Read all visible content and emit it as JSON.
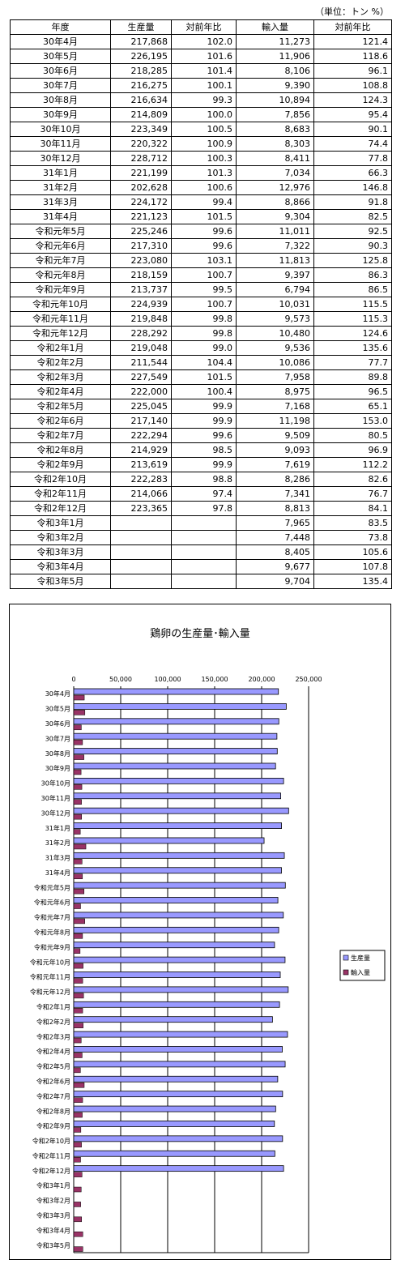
{
  "unit_note": "（単位：トン %）",
  "table": {
    "headers": [
      "年度",
      "生産量",
      "対前年比",
      "輸入量",
      "対前年比"
    ],
    "rows": [
      [
        "30年4月",
        "217,868",
        "102.0",
        "11,273",
        "121.4"
      ],
      [
        "30年5月",
        "226,195",
        "101.6",
        "11,906",
        "118.6"
      ],
      [
        "30年6月",
        "218,285",
        "101.4",
        "8,106",
        "96.1"
      ],
      [
        "30年7月",
        "216,275",
        "100.1",
        "9,390",
        "108.8"
      ],
      [
        "30年8月",
        "216,634",
        "99.3",
        "10,894",
        "124.3"
      ],
      [
        "30年9月",
        "214,809",
        "100.0",
        "7,856",
        "95.4"
      ],
      [
        "30年10月",
        "223,349",
        "100.5",
        "8,683",
        "90.1"
      ],
      [
        "30年11月",
        "220,322",
        "100.9",
        "8,303",
        "74.4"
      ],
      [
        "30年12月",
        "228,712",
        "100.3",
        "8,411",
        "77.8"
      ],
      [
        "31年1月",
        "221,199",
        "101.3",
        "7,034",
        "66.3"
      ],
      [
        "31年2月",
        "202,628",
        "100.6",
        "12,976",
        "146.8"
      ],
      [
        "31年3月",
        "224,172",
        "99.4",
        "8,866",
        "91.8"
      ],
      [
        "31年4月",
        "221,123",
        "101.5",
        "9,304",
        "82.5"
      ],
      [
        "令和元年5月",
        "225,246",
        "99.6",
        "11,011",
        "92.5"
      ],
      [
        "令和元年6月",
        "217,310",
        "99.6",
        "7,322",
        "90.3"
      ],
      [
        "令和元年7月",
        "223,080",
        "103.1",
        "11,813",
        "125.8"
      ],
      [
        "令和元年8月",
        "218,159",
        "100.7",
        "9,397",
        "86.3"
      ],
      [
        "令和元年9月",
        "213,737",
        "99.5",
        "6,794",
        "86.5"
      ],
      [
        "令和元年10月",
        "224,939",
        "100.7",
        "10,031",
        "115.5"
      ],
      [
        "令和元年11月",
        "219,848",
        "99.8",
        "9,573",
        "115.3"
      ],
      [
        "令和元年12月",
        "228,292",
        "99.8",
        "10,480",
        "124.6"
      ],
      [
        "令和2年1月",
        "219,048",
        "99.0",
        "9,536",
        "135.6"
      ],
      [
        "令和2年2月",
        "211,544",
        "104.4",
        "10,086",
        "77.7"
      ],
      [
        "令和2年3月",
        "227,549",
        "101.5",
        "7,958",
        "89.8"
      ],
      [
        "令和2年4月",
        "222,000",
        "100.4",
        "8,975",
        "96.5"
      ],
      [
        "令和2年5月",
        "225,045",
        "99.9",
        "7,168",
        "65.1"
      ],
      [
        "令和2年6月",
        "217,140",
        "99.9",
        "11,198",
        "153.0"
      ],
      [
        "令和2年7月",
        "222,294",
        "99.6",
        "9,509",
        "80.5"
      ],
      [
        "令和2年8月",
        "214,929",
        "98.5",
        "9,093",
        "96.9"
      ],
      [
        "令和2年9月",
        "213,619",
        "99.9",
        "7,619",
        "112.2"
      ],
      [
        "令和2年10月",
        "222,283",
        "98.8",
        "8,286",
        "82.6"
      ],
      [
        "令和2年11月",
        "214,066",
        "97.4",
        "7,341",
        "76.7"
      ],
      [
        "令和2年12月",
        "223,365",
        "97.8",
        "8,813",
        "84.1"
      ],
      [
        "令和3年1月",
        "",
        "",
        "7,965",
        "83.5"
      ],
      [
        "令和3年2月",
        "",
        "",
        "7,448",
        "73.8"
      ],
      [
        "令和3年3月",
        "",
        "",
        "8,405",
        "105.6"
      ],
      [
        "令和3年4月",
        "",
        "",
        "9,677",
        "107.8"
      ],
      [
        "令和3年5月",
        "",
        "",
        "9,704",
        "135.4"
      ]
    ]
  },
  "chart_data": {
    "type": "bar",
    "orientation": "horizontal",
    "title": "鶏卵の生産量･輸入量",
    "xlim": [
      0,
      250000
    ],
    "x_ticks": [
      "0",
      "50,000",
      "100,000",
      "150,000",
      "200,000",
      "250,000"
    ],
    "grid": true,
    "legend_position": "right",
    "categories": [
      "30年4月",
      "30年5月",
      "30年6月",
      "30年7月",
      "30年8月",
      "30年9月",
      "30年10月",
      "30年11月",
      "30年12月",
      "31年1月",
      "31年2月",
      "31年3月",
      "31年4月",
      "令和元年5月",
      "令和元年6月",
      "令和元年7月",
      "令和元年8月",
      "令和元年9月",
      "令和元年10月",
      "令和元年11月",
      "令和元年12月",
      "令和2年1月",
      "令和2年2月",
      "令和2年3月",
      "令和2年4月",
      "令和2年5月",
      "令和2年6月",
      "令和2年7月",
      "令和2年8月",
      "令和2年9月",
      "令和2年10月",
      "令和2年11月",
      "令和2年12月",
      "令和3年1月",
      "令和3年2月",
      "令和3年3月",
      "令和3年4月",
      "令和3年5月"
    ],
    "series": [
      {
        "name": "生産量",
        "color": "#9999ff",
        "values": [
          217868,
          226195,
          218285,
          216275,
          216634,
          214809,
          223349,
          220322,
          228712,
          221199,
          202628,
          224172,
          221123,
          225246,
          217310,
          223080,
          218159,
          213737,
          224939,
          219848,
          228292,
          219048,
          211544,
          227549,
          222000,
          225045,
          217140,
          222294,
          214929,
          213619,
          222283,
          214066,
          223365,
          null,
          null,
          null,
          null,
          null
        ]
      },
      {
        "name": "輸入量",
        "color": "#993366",
        "values": [
          11273,
          11906,
          8106,
          9390,
          10894,
          7856,
          8683,
          8303,
          8411,
          7034,
          12976,
          8866,
          9304,
          11011,
          7322,
          11813,
          9397,
          6794,
          10031,
          9573,
          10480,
          9536,
          10086,
          7958,
          8975,
          7168,
          11198,
          9509,
          9093,
          7619,
          8286,
          7341,
          8813,
          7965,
          7448,
          8405,
          9677,
          9704
        ]
      }
    ]
  }
}
